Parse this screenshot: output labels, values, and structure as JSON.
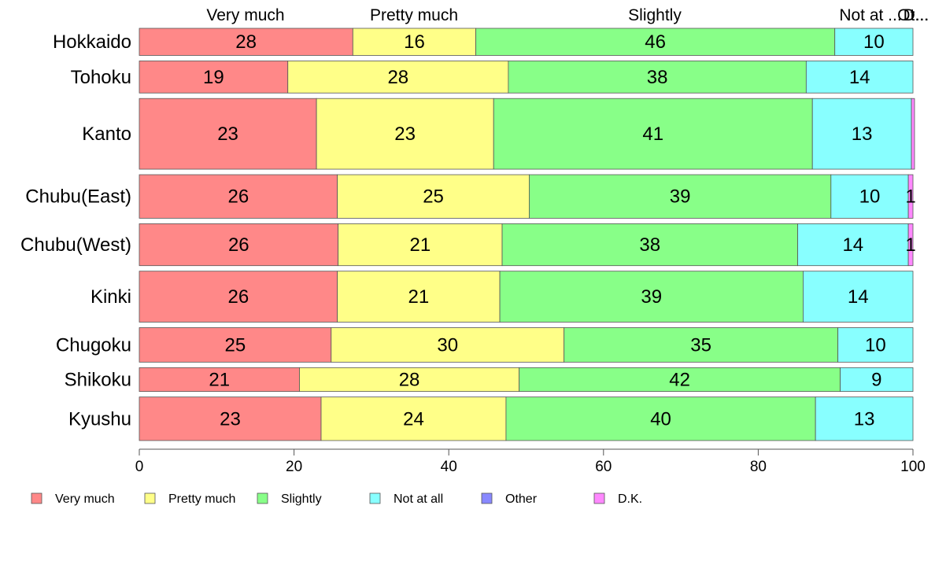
{
  "chart_data": {
    "type": "bar",
    "orientation": "horizontal",
    "stacked": "percent",
    "title": "",
    "xlabel": "",
    "ylabel": "",
    "xlim": [
      0,
      100
    ],
    "x_ticks": [
      "0",
      "20",
      "40",
      "60",
      "80",
      "100"
    ],
    "grid": false,
    "legend_position": "bottom",
    "top_labels": [
      "Very much",
      "Pretty much",
      "Slightly",
      "Not at ...",
      "Ot...",
      "D..."
    ],
    "categories": [
      "Hokkaido",
      "Tohoku",
      "Kanto",
      "Chubu(East)",
      "Chubu(West)",
      "Kinki",
      "Chugoku",
      "Shikoku",
      "Kyushu"
    ],
    "relative_widths": [
      0.33,
      0.39,
      0.86,
      0.53,
      0.51,
      0.62,
      0.42,
      0.29,
      0.53
    ],
    "series": [
      {
        "name": "Very much",
        "color": "#ff8888",
        "values": [
          27.6,
          19.2,
          22.9,
          25.6,
          25.7,
          25.6,
          24.8,
          20.7,
          23.5
        ],
        "labels": [
          "28",
          "19",
          "23",
          "26",
          "26",
          "26",
          "25",
          "21",
          "23"
        ]
      },
      {
        "name": "Pretty much",
        "color": "#ffff88",
        "values": [
          15.9,
          28.5,
          22.9,
          24.8,
          21.2,
          21.0,
          30.1,
          28.4,
          23.9
        ],
        "labels": [
          "16",
          "28",
          "23",
          "25",
          "21",
          "21",
          "30",
          "28",
          "24"
        ]
      },
      {
        "name": "Slightly",
        "color": "#88ff88",
        "values": [
          46.4,
          38.5,
          41.2,
          39.0,
          38.2,
          39.2,
          35.4,
          41.5,
          40.0
        ],
        "labels": [
          "46",
          "38",
          "41",
          "39",
          "38",
          "39",
          "35",
          "42",
          "40"
        ]
      },
      {
        "name": "Not at all",
        "color": "#88ffff",
        "values": [
          10.1,
          13.8,
          12.8,
          10.0,
          14.3,
          14.2,
          9.7,
          9.4,
          12.6
        ],
        "labels": [
          "10",
          "14",
          "13",
          "10",
          "14",
          "14",
          "10",
          "9",
          "13"
        ]
      },
      {
        "name": "Other",
        "color": "#8888ff",
        "values": [
          0,
          0,
          0,
          0,
          0,
          0,
          0,
          0,
          0
        ],
        "labels": [
          "",
          "",
          "",
          "",
          "",
          "",
          "",
          "",
          ""
        ]
      },
      {
        "name": "D.K.",
        "color": "#ff88ff",
        "values": [
          0,
          0,
          0.4,
          0.6,
          0.6,
          0,
          0,
          0,
          0
        ],
        "labels": [
          "",
          "",
          "",
          "1",
          "1",
          "",
          "",
          "",
          ""
        ]
      }
    ]
  }
}
